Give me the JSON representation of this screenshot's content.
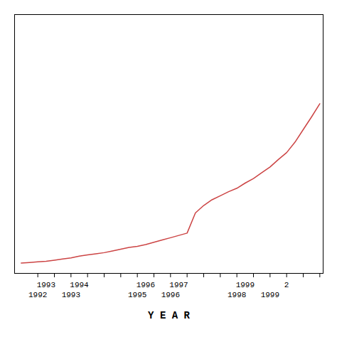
{
  "chart_data": {
    "type": "line",
    "xlabel": "Y E A R",
    "color": "#cc4444",
    "x": [
      1991.5,
      1991.75,
      1992.0,
      1992.25,
      1992.5,
      1992.75,
      1993.0,
      1993.25,
      1993.5,
      1993.75,
      1994.0,
      1994.25,
      1994.5,
      1994.75,
      1995.0,
      1995.25,
      1995.5,
      1995.75,
      1996.0,
      1996.25,
      1996.5,
      1996.75,
      1997.0,
      1997.25,
      1997.5,
      1997.75,
      1998.0,
      1998.25,
      1998.5,
      1998.75,
      1999.0,
      1999.25,
      1999.5,
      1999.75,
      2000.0,
      2000.25,
      2000.5
    ],
    "values": [
      0.18,
      0.19,
      0.2,
      0.21,
      0.23,
      0.25,
      0.27,
      0.3,
      0.32,
      0.34,
      0.36,
      0.39,
      0.42,
      0.45,
      0.47,
      0.5,
      0.54,
      0.58,
      0.62,
      0.66,
      0.7,
      1.05,
      1.18,
      1.28,
      1.35,
      1.42,
      1.48,
      1.57,
      1.65,
      1.75,
      1.85,
      1.98,
      2.1,
      2.28,
      2.5,
      2.72,
      2.95
    ],
    "xlim": [
      1991.3,
      2000.6
    ],
    "ylim": [
      0.0,
      4.5
    ],
    "xticks": [
      1992.0,
      1992.5,
      1993.0,
      1993.5,
      1994.0,
      1994.5,
      1995.0,
      1995.5,
      1996.0,
      1996.5,
      1997.0,
      1997.5,
      1998.0,
      1998.5,
      1999.0,
      1999.5,
      2000.0,
      2000.5
    ],
    "tick_labels": false,
    "annotations": [
      [
        {
          "x": 1992.25,
          "text": "1993"
        },
        {
          "x": 1993.25,
          "text": "1994"
        },
        {
          "x": 1995.25,
          "text": "1996"
        },
        {
          "x": 1996.25,
          "text": "1997"
        },
        {
          "x": 1998.25,
          "text": "1999"
        },
        {
          "x": 1999.5,
          "text": "2"
        }
      ],
      [
        {
          "x": 1992.0,
          "text": "1992"
        },
        {
          "x": 1993.0,
          "text": "1993"
        },
        {
          "x": 1995.0,
          "text": "1995"
        },
        {
          "x": 1996.0,
          "text": "1996"
        },
        {
          "x": 1998.0,
          "text": "1998"
        },
        {
          "x": 1999.0,
          "text": "1999"
        }
      ]
    ]
  }
}
